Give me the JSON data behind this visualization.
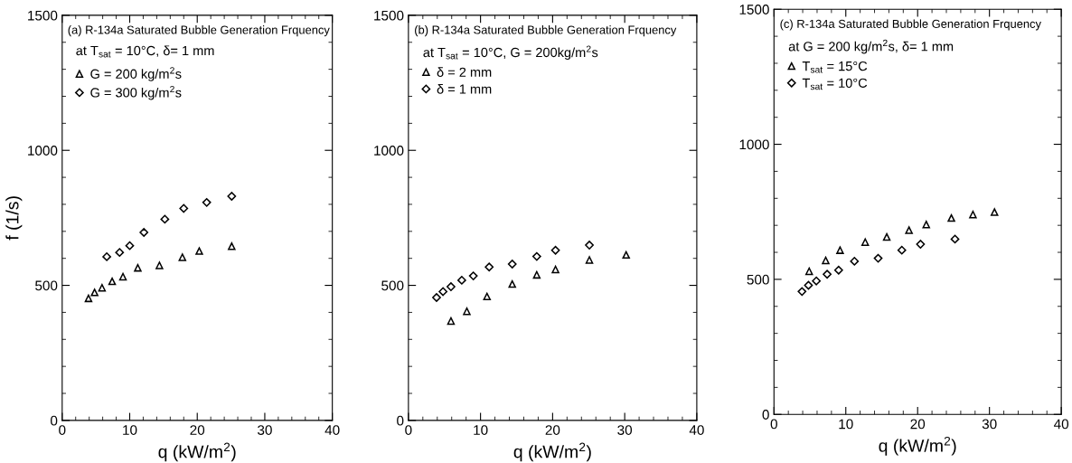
{
  "chart_data": [
    {
      "type": "scatter",
      "title": "(a) R-134a Saturated Bubble Generation Frquency",
      "subtitle": "at T$_{sat}$ = 10°C, δ= 1 mm",
      "xlabel": "q (kW/m$^{2}$)",
      "ylabel": "f (1/s)",
      "xlim": [
        0,
        40
      ],
      "ylim": [
        0,
        1500
      ],
      "xticks": [
        0,
        10,
        20,
        30,
        40
      ],
      "yticks": [
        0,
        500,
        1000,
        1500
      ],
      "grid": false,
      "legend": "top left",
      "series": [
        {
          "name": "G = 200 kg/m$^{2}$s",
          "color": "#000000",
          "marker": "triangle",
          "x": [
            3.9,
            4.8,
            5.9,
            7.4,
            9.0,
            11.2,
            14.4,
            17.8,
            20.3,
            25.1
          ],
          "values": [
            452,
            474,
            491,
            515,
            532,
            565,
            574,
            604,
            627,
            645
          ]
        },
        {
          "name": "G = 300 kg/m$^{2}$s",
          "color": "#000000",
          "marker": "diamond",
          "x": [
            6.6,
            8.5,
            10.0,
            12.1,
            15.2,
            18.0,
            21.4,
            25.1
          ],
          "values": [
            606,
            622,
            647,
            696,
            745,
            785,
            807,
            830
          ]
        }
      ]
    },
    {
      "type": "scatter",
      "title": "(b) R-134a Saturated Bubble Generation Frquency",
      "subtitle": "at T$_{sat}$ = 10°C, G = 200kg/m$^{2}$s",
      "xlabel": "q (kW/m$^{2}$)",
      "xlim": [
        0,
        40
      ],
      "ylim": [
        0,
        1500
      ],
      "xticks": [
        0,
        10,
        20,
        30,
        40
      ],
      "yticks": [
        0,
        500,
        1000,
        1500
      ],
      "grid": false,
      "legend": "top left",
      "series": [
        {
          "name": "δ = 2 mm",
          "color": "#000000",
          "marker": "triangle",
          "x": [
            5.9,
            8.1,
            10.9,
            14.4,
            17.8,
            20.4,
            25.1,
            30.2
          ],
          "values": [
            368,
            404,
            459,
            505,
            539,
            559,
            594,
            613
          ]
        },
        {
          "name": "δ = 1 mm",
          "color": "#000000",
          "marker": "diamond",
          "x": [
            3.9,
            4.8,
            5.9,
            7.4,
            9.0,
            11.2,
            14.4,
            17.8,
            20.4,
            25.1
          ],
          "values": [
            455,
            477,
            495,
            519,
            535,
            568,
            579,
            607,
            630,
            649
          ]
        }
      ]
    },
    {
      "type": "scatter",
      "title": "(c) R-134a Saturated Bubble Generation Frquency",
      "subtitle": "at G = 200 kg/m$^{2}$s, δ= 1 mm",
      "xlabel": "q (kW/m$^{2}$)",
      "xlim": [
        0,
        40
      ],
      "ylim": [
        0,
        1500
      ],
      "xticks": [
        0,
        10,
        20,
        30,
        40
      ],
      "yticks": [
        0,
        500,
        1000,
        1500
      ],
      "grid": false,
      "legend": "top left",
      "series": [
        {
          "name": "T$_{sat}$ = 15°C",
          "color": "#000000",
          "marker": "triangle",
          "x": [
            4.9,
            7.2,
            9.2,
            12.7,
            15.7,
            18.8,
            21.2,
            24.7,
            27.7,
            30.7
          ],
          "values": [
            530,
            570,
            608,
            638,
            657,
            682,
            703,
            727,
            740,
            749
          ]
        },
        {
          "name": "T$_{sat}$ = 10°C",
          "color": "#000000",
          "marker": "diamond",
          "x": [
            3.9,
            4.8,
            5.9,
            7.4,
            9.0,
            11.2,
            14.5,
            17.8,
            20.4,
            25.2
          ],
          "values": [
            455,
            478,
            494,
            519,
            534,
            567,
            578,
            608,
            630,
            649
          ]
        }
      ]
    }
  ]
}
